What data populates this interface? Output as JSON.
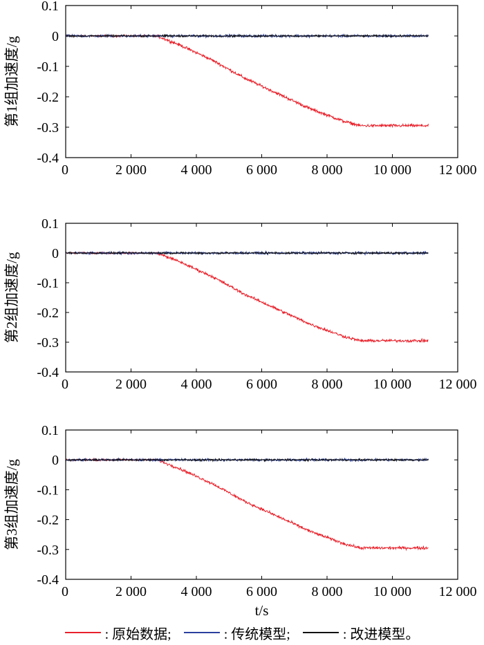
{
  "chart_data": [
    {
      "type": "line",
      "ylabel": "第1组加速度/g",
      "xlabel": "",
      "xlim": [
        0,
        12000
      ],
      "ylim": [
        -0.4,
        0.1
      ],
      "x_ticks": [
        "0",
        "2 000",
        "4 000",
        "6 000",
        "8 000",
        "10 000",
        "12 000"
      ],
      "y_ticks": [
        "0.1",
        "0",
        "-0.1",
        "-0.2",
        "-0.3",
        "-0.4"
      ],
      "series": [
        {
          "name": "原始数据",
          "color": "#e8202a",
          "x": [
            0,
            1000,
            2000,
            2800,
            3500,
            4500,
            5500,
            6500,
            7500,
            8500,
            9000,
            10000,
            11100
          ],
          "y": [
            0,
            0,
            0,
            0,
            -0.03,
            -0.08,
            -0.14,
            -0.19,
            -0.24,
            -0.28,
            -0.295,
            -0.295,
            -0.295
          ]
        },
        {
          "name": "传统模型",
          "color": "#2b3f9e",
          "x": [
            0,
            11100
          ],
          "y": [
            0,
            0
          ]
        },
        {
          "name": "改进模型",
          "color": "#111111",
          "x": [
            0,
            11100
          ],
          "y": [
            0,
            0
          ]
        }
      ]
    },
    {
      "type": "line",
      "ylabel": "第2组加速度/g",
      "xlabel": "",
      "xlim": [
        0,
        12000
      ],
      "ylim": [
        -0.4,
        0.1
      ],
      "x_ticks": [
        "0",
        "2 000",
        "4 000",
        "6 000",
        "8 000",
        "10 000",
        "12 000"
      ],
      "y_ticks": [
        "0.1",
        "0",
        "-0.1",
        "-0.2",
        "-0.3",
        "-0.4"
      ],
      "series": [
        {
          "name": "原始数据",
          "color": "#e8202a",
          "x": [
            0,
            1000,
            2000,
            2800,
            3500,
            4500,
            5500,
            6500,
            7500,
            8500,
            9000,
            10000,
            11100
          ],
          "y": [
            0,
            0,
            0,
            0,
            -0.03,
            -0.08,
            -0.14,
            -0.19,
            -0.24,
            -0.28,
            -0.295,
            -0.295,
            -0.295
          ]
        },
        {
          "name": "传统模型",
          "color": "#2b3f9e",
          "x": [
            0,
            11100
          ],
          "y": [
            0,
            0
          ]
        },
        {
          "name": "改进模型",
          "color": "#111111",
          "x": [
            0,
            11100
          ],
          "y": [
            0,
            0
          ]
        }
      ]
    },
    {
      "type": "line",
      "ylabel": "第3组加速度/g",
      "xlabel": "t/s",
      "xlim": [
        0,
        12000
      ],
      "ylim": [
        -0.4,
        0.1
      ],
      "x_ticks": [
        "0",
        "2 000",
        "4 000",
        "6 000",
        "8 000",
        "10 000",
        "12 000"
      ],
      "y_ticks": [
        "0.1",
        "0",
        "-0.1",
        "-0.2",
        "-0.3",
        "-0.4"
      ],
      "series": [
        {
          "name": "原始数据",
          "color": "#e8202a",
          "x": [
            0,
            1000,
            2000,
            2800,
            3500,
            4500,
            5500,
            6500,
            7500,
            8500,
            9000,
            10000,
            11100
          ],
          "y": [
            0,
            0,
            0,
            0,
            -0.03,
            -0.08,
            -0.14,
            -0.19,
            -0.24,
            -0.28,
            -0.295,
            -0.295,
            -0.295
          ]
        },
        {
          "name": "传统模型",
          "color": "#2b3f9e",
          "x": [
            0,
            11100
          ],
          "y": [
            0,
            0
          ]
        },
        {
          "name": "改进模型",
          "color": "#111111",
          "x": [
            0,
            11100
          ],
          "y": [
            0,
            0
          ]
        }
      ]
    }
  ],
  "legend": [
    {
      "label": ": 原始数据;",
      "color": "#e8202a"
    },
    {
      "label": ": 传统模型;",
      "color": "#2b3f9e"
    },
    {
      "label": ": 改进模型。",
      "color": "#111111"
    }
  ]
}
